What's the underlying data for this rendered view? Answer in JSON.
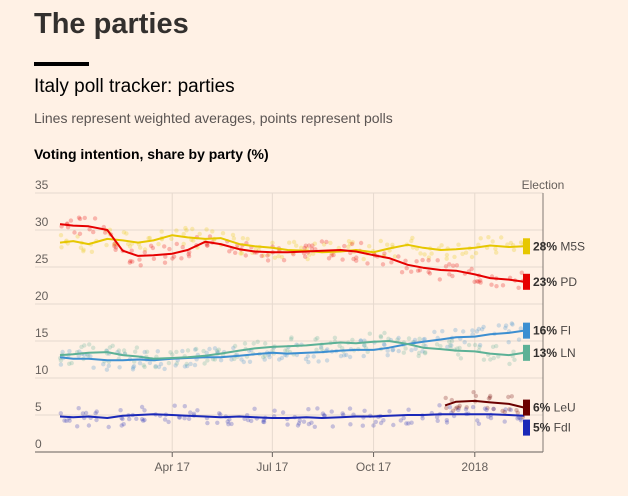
{
  "header": {
    "section_title": "The parties",
    "chart_title": "Italy poll tracker: parties",
    "subtitle": "Lines represent weighted averages, points represent polls",
    "y_axis_title": "Voting intention, share by party (%)"
  },
  "chart_data": {
    "type": "line",
    "title": "Italy poll tracker: parties",
    "subtitle": "Lines represent weighted averages, points represent polls",
    "ylabel": "Voting intention, share by party (%)",
    "ylim": [
      0,
      35
    ],
    "yticks": [
      0,
      5,
      10,
      15,
      20,
      25,
      30,
      35
    ],
    "xlim": [
      "2016-12-20",
      "2018-03-04"
    ],
    "xticks": [
      {
        "date": "2017-04-01",
        "label": "Apr 17"
      },
      {
        "date": "2017-07-01",
        "label": "Jul 17"
      },
      {
        "date": "2017-10-01",
        "label": "Oct 17"
      },
      {
        "date": "2018-01-01",
        "label": "2018"
      }
    ],
    "grid": true,
    "points_shown": true,
    "annotation": {
      "date": "2018-03-04",
      "label": "Election"
    },
    "series": [
      {
        "name": "M5S",
        "end_label": "28%",
        "color": "#e6c700",
        "points": [
          [
            "2016-12-20",
            28.3
          ],
          [
            "2017-01-01",
            28.5
          ],
          [
            "2017-01-15",
            28.1
          ],
          [
            "2017-02-01",
            28.8
          ],
          [
            "2017-02-15",
            28.6
          ],
          [
            "2017-03-01",
            28.3
          ],
          [
            "2017-03-15",
            28.6
          ],
          [
            "2017-04-01",
            29.3
          ],
          [
            "2017-04-15",
            29.0
          ],
          [
            "2017-05-01",
            28.8
          ],
          [
            "2017-05-15",
            28.9
          ],
          [
            "2017-06-01",
            28.1
          ],
          [
            "2017-06-15",
            27.8
          ],
          [
            "2017-07-01",
            27.6
          ],
          [
            "2017-07-15",
            27.3
          ],
          [
            "2017-08-01",
            27.2
          ],
          [
            "2017-08-15",
            27.0
          ],
          [
            "2017-09-01",
            27.1
          ],
          [
            "2017-09-15",
            27.3
          ],
          [
            "2017-10-01",
            27.0
          ],
          [
            "2017-10-15",
            27.5
          ],
          [
            "2017-11-01",
            28.0
          ],
          [
            "2017-11-15",
            27.6
          ],
          [
            "2017-12-01",
            27.3
          ],
          [
            "2017-12-15",
            27.4
          ],
          [
            "2018-01-01",
            27.6
          ],
          [
            "2018-01-15",
            27.9
          ],
          [
            "2018-02-01",
            27.7
          ],
          [
            "2018-02-15",
            27.8
          ]
        ]
      },
      {
        "name": "PD",
        "end_label": "23%",
        "color": "#e60000",
        "points": [
          [
            "2016-12-20",
            30.8
          ],
          [
            "2017-01-01",
            30.6
          ],
          [
            "2017-01-15",
            30.5
          ],
          [
            "2017-02-01",
            30.0
          ],
          [
            "2017-02-15",
            27.2
          ],
          [
            "2017-03-01",
            26.5
          ],
          [
            "2017-03-15",
            26.6
          ],
          [
            "2017-04-01",
            26.8
          ],
          [
            "2017-04-15",
            27.3
          ],
          [
            "2017-05-01",
            28.4
          ],
          [
            "2017-05-15",
            28.1
          ],
          [
            "2017-06-01",
            27.4
          ],
          [
            "2017-06-15",
            27.1
          ],
          [
            "2017-07-01",
            27.0
          ],
          [
            "2017-07-15",
            27.0
          ],
          [
            "2017-08-01",
            27.1
          ],
          [
            "2017-08-15",
            27.2
          ],
          [
            "2017-09-01",
            27.3
          ],
          [
            "2017-09-15",
            27.1
          ],
          [
            "2017-10-01",
            26.6
          ],
          [
            "2017-10-15",
            26.2
          ],
          [
            "2017-11-01",
            25.3
          ],
          [
            "2017-11-15",
            24.9
          ],
          [
            "2017-12-01",
            24.6
          ],
          [
            "2017-12-15",
            24.5
          ],
          [
            "2018-01-01",
            24.0
          ],
          [
            "2018-01-15",
            23.5
          ],
          [
            "2018-02-01",
            23.3
          ],
          [
            "2018-02-15",
            23.0
          ]
        ]
      },
      {
        "name": "FI",
        "end_label": "16%",
        "color": "#3d8fd1",
        "points": [
          [
            "2016-12-20",
            12.8
          ],
          [
            "2017-01-01",
            12.6
          ],
          [
            "2017-01-15",
            12.6
          ],
          [
            "2017-02-01",
            12.4
          ],
          [
            "2017-02-15",
            12.4
          ],
          [
            "2017-03-01",
            12.5
          ],
          [
            "2017-03-15",
            12.4
          ],
          [
            "2017-04-01",
            12.6
          ],
          [
            "2017-04-15",
            12.7
          ],
          [
            "2017-05-01",
            12.8
          ],
          [
            "2017-05-15",
            12.8
          ],
          [
            "2017-06-01",
            13.0
          ],
          [
            "2017-06-15",
            13.2
          ],
          [
            "2017-07-01",
            13.4
          ],
          [
            "2017-07-15",
            13.3
          ],
          [
            "2017-08-01",
            13.4
          ],
          [
            "2017-08-15",
            13.5
          ],
          [
            "2017-09-01",
            13.7
          ],
          [
            "2017-09-15",
            13.8
          ],
          [
            "2017-10-01",
            13.8
          ],
          [
            "2017-10-15",
            14.1
          ],
          [
            "2017-11-01",
            14.6
          ],
          [
            "2017-11-15",
            14.9
          ],
          [
            "2017-12-01",
            15.2
          ],
          [
            "2017-12-15",
            15.5
          ],
          [
            "2018-01-01",
            15.6
          ],
          [
            "2018-01-15",
            15.9
          ],
          [
            "2018-02-01",
            16.1
          ],
          [
            "2018-02-15",
            16.4
          ]
        ]
      },
      {
        "name": "LN",
        "end_label": "13%",
        "color": "#5cb196",
        "points": [
          [
            "2016-12-20",
            13.1
          ],
          [
            "2017-01-01",
            13.2
          ],
          [
            "2017-01-15",
            13.4
          ],
          [
            "2017-02-01",
            13.5
          ],
          [
            "2017-02-15",
            13.1
          ],
          [
            "2017-03-01",
            12.9
          ],
          [
            "2017-03-15",
            12.6
          ],
          [
            "2017-04-01",
            12.7
          ],
          [
            "2017-04-15",
            12.8
          ],
          [
            "2017-05-01",
            13.0
          ],
          [
            "2017-05-15",
            13.3
          ],
          [
            "2017-06-01",
            13.7
          ],
          [
            "2017-06-15",
            14.0
          ],
          [
            "2017-07-01",
            14.2
          ],
          [
            "2017-07-15",
            14.3
          ],
          [
            "2017-08-01",
            14.4
          ],
          [
            "2017-08-15",
            14.6
          ],
          [
            "2017-09-01",
            14.8
          ],
          [
            "2017-09-15",
            14.7
          ],
          [
            "2017-10-01",
            14.9
          ],
          [
            "2017-10-15",
            15.0
          ],
          [
            "2017-11-01",
            14.6
          ],
          [
            "2017-11-15",
            14.1
          ],
          [
            "2017-12-01",
            13.9
          ],
          [
            "2017-12-15",
            13.7
          ],
          [
            "2018-01-01",
            13.6
          ],
          [
            "2018-01-15",
            13.3
          ],
          [
            "2018-02-01",
            13.1
          ],
          [
            "2018-02-15",
            13.4
          ]
        ]
      },
      {
        "name": "LeU",
        "end_label": "6%",
        "color": "#6b0000",
        "points": [
          [
            "2017-12-05",
            6.3
          ],
          [
            "2017-12-15",
            6.8
          ],
          [
            "2018-01-01",
            6.9
          ],
          [
            "2018-01-15",
            6.7
          ],
          [
            "2018-02-01",
            6.5
          ],
          [
            "2018-02-15",
            6.0
          ]
        ]
      },
      {
        "name": "FdI",
        "end_label": "5%",
        "color": "#1a28b8",
        "points": [
          [
            "2016-12-20",
            4.8
          ],
          [
            "2017-01-01",
            4.7
          ],
          [
            "2017-01-15",
            4.8
          ],
          [
            "2017-02-01",
            4.6
          ],
          [
            "2017-02-15",
            4.9
          ],
          [
            "2017-03-01",
            5.0
          ],
          [
            "2017-03-15",
            5.1
          ],
          [
            "2017-04-01",
            5.0
          ],
          [
            "2017-04-15",
            4.9
          ],
          [
            "2017-05-01",
            4.8
          ],
          [
            "2017-05-15",
            4.7
          ],
          [
            "2017-06-01",
            4.8
          ],
          [
            "2017-06-15",
            4.7
          ],
          [
            "2017-07-01",
            4.6
          ],
          [
            "2017-07-15",
            4.6
          ],
          [
            "2017-08-01",
            4.7
          ],
          [
            "2017-08-15",
            4.6
          ],
          [
            "2017-09-01",
            4.7
          ],
          [
            "2017-09-15",
            4.8
          ],
          [
            "2017-10-01",
            4.8
          ],
          [
            "2017-10-15",
            4.9
          ],
          [
            "2017-11-01",
            5.0
          ],
          [
            "2017-11-15",
            5.0
          ],
          [
            "2017-12-01",
            5.1
          ],
          [
            "2017-12-15",
            5.1
          ],
          [
            "2018-01-01",
            5.1
          ],
          [
            "2018-01-15",
            5.1
          ],
          [
            "2018-02-01",
            5.0
          ],
          [
            "2018-02-15",
            4.9
          ]
        ]
      }
    ]
  }
}
